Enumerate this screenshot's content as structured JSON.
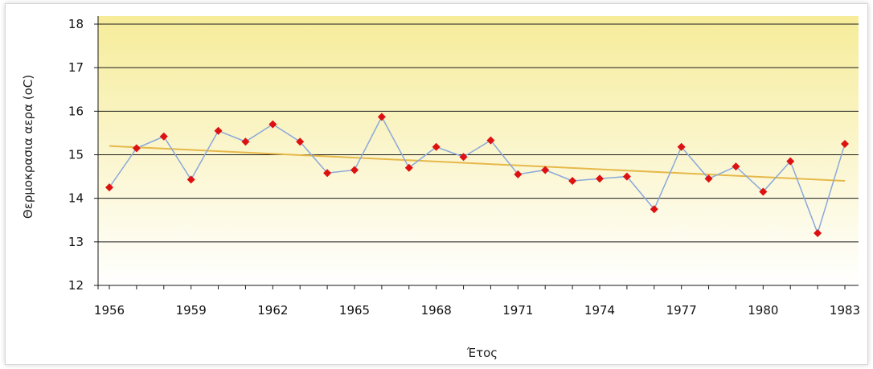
{
  "chart_data": {
    "type": "line",
    "title": "",
    "xlabel": "Έτος",
    "ylabel": "Θερμοκρασια αερα  (οC)",
    "ylim": [
      12,
      18
    ],
    "yticks": [
      "12",
      "13",
      "14",
      "15",
      "16",
      "17",
      "18"
    ],
    "xticks": [
      "1956",
      "1959",
      "1962",
      "1965",
      "1968",
      "1971",
      "1974",
      "1977",
      "1980",
      "1983"
    ],
    "grid": true,
    "legend": "none",
    "series": [
      {
        "x": [
          1956,
          1957,
          1958,
          1959,
          1960,
          1961,
          1962,
          1963,
          1964,
          1965,
          1966,
          1967,
          1968,
          1969,
          1970,
          1971,
          1972,
          1973,
          1974,
          1975,
          1976,
          1977,
          1978,
          1979,
          1980,
          1981,
          1982,
          1983
        ],
        "values": [
          14.25,
          15.15,
          15.42,
          14.43,
          15.55,
          15.3,
          15.7,
          15.3,
          14.58,
          14.65,
          15.87,
          14.7,
          15.18,
          14.95,
          15.33,
          14.55,
          14.65,
          14.4,
          14.45,
          14.5,
          13.75,
          15.18,
          14.45,
          14.73,
          14.15,
          14.85,
          13.2,
          15.25
        ],
        "line_color": "#8aa8da",
        "marker_color": "#dd1111"
      }
    ],
    "trendline": {
      "x": [
        1956,
        1983
      ],
      "values": [
        15.2,
        14.4
      ],
      "color": "#e6b84a"
    },
    "plot_background": {
      "top_color": "#f6ec9a",
      "bottom_color": "#ffffff"
    }
  }
}
